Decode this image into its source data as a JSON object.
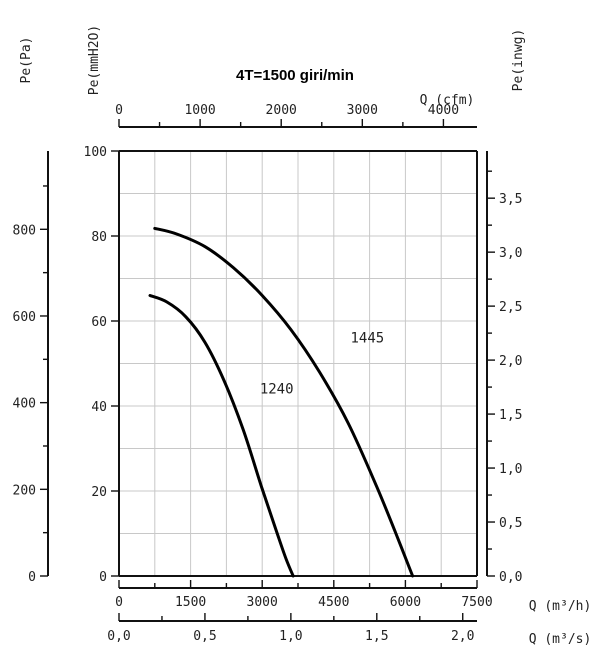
{
  "chart_data": {
    "type": "line",
    "title": "4T=1500 giri/min",
    "x": {
      "primary": {
        "label": "Q (m³/h)",
        "min": 0,
        "max": 7500,
        "ticks": [
          "0",
          "1500",
          "3000",
          "4500",
          "6000",
          "7500"
        ],
        "values": [
          0,
          1500,
          3000,
          4500,
          6000,
          7500
        ]
      },
      "secondary_bottom": {
        "label": "Q (m³/s)",
        "min": 0,
        "max": 2.083,
        "ticks": [
          "0,0",
          "0,5",
          "1,0",
          "1,5",
          "2,0"
        ],
        "values": [
          0,
          0.5,
          1.0,
          1.5,
          2.0
        ]
      },
      "top": {
        "label": "Q (cfm)",
        "min": 0,
        "max": 4414,
        "ticks": [
          "0",
          "1000",
          "2000",
          "3000",
          "4000"
        ],
        "values": [
          0,
          1000,
          2000,
          3000,
          4000
        ]
      }
    },
    "y": {
      "primary": {
        "label": "Pe(mmH2O)",
        "min": 0,
        "max": 100,
        "ticks": [
          "0",
          "20",
          "40",
          "60",
          "80",
          "100"
        ],
        "values": [
          0,
          20,
          40,
          60,
          80,
          100
        ]
      },
      "left": {
        "label": "Pe(Pa)",
        "min": 0,
        "max": 980.7,
        "ticks": [
          "0",
          "200",
          "400",
          "600",
          "800"
        ],
        "values": [
          0,
          200,
          400,
          600,
          800
        ]
      },
      "right": {
        "label": "Pe(inwg)",
        "min": 0,
        "max": 3.937,
        "ticks": [
          "0,0",
          "0,5",
          "1,0",
          "1,5",
          "2,0",
          "2,5",
          "3,0",
          "3,5"
        ],
        "values": [
          0,
          0.5,
          1.0,
          1.5,
          2.0,
          2.5,
          3.0,
          3.5
        ]
      }
    },
    "grid": true,
    "series": [
      {
        "name": "1445",
        "x": [
          750,
          1200,
          1800,
          2400,
          3000,
          3600,
          4200,
          4800,
          5400,
          5800,
          6150
        ],
        "y": [
          81.8,
          80.5,
          77.5,
          72.5,
          66,
          58,
          48,
          36,
          21,
          10,
          0
        ],
        "label": {
          "text": "1445",
          "x": 4850,
          "y": 55
        }
      },
      {
        "name": "1240",
        "x": [
          650,
          1000,
          1400,
          1800,
          2200,
          2600,
          3000,
          3300,
          3500,
          3650
        ],
        "y": [
          66,
          64.5,
          61,
          55,
          46,
          34.5,
          20.5,
          10.5,
          4,
          0
        ],
        "label": {
          "text": "1240",
          "x": 2950,
          "y": 43
        }
      }
    ]
  }
}
